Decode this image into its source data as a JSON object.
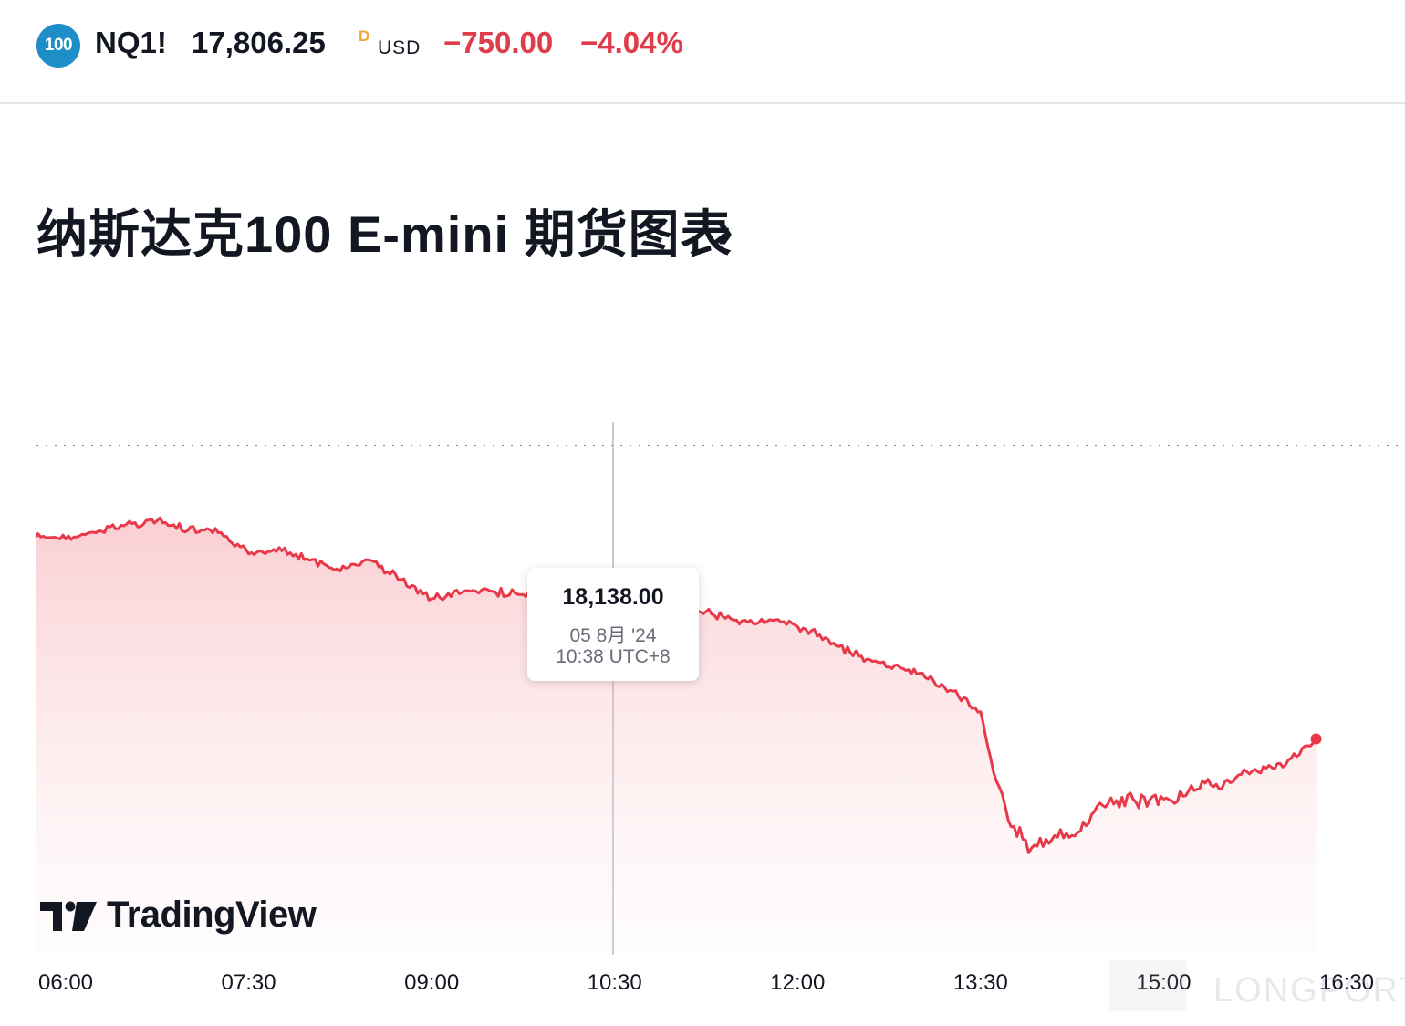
{
  "header": {
    "badge": "100",
    "symbol": "NQ1!",
    "price": "17,806.25",
    "price_flag": "D",
    "currency": "USD",
    "change": "−750.00",
    "change_pct": "−4.04%",
    "colors": {
      "negative": "#e03d4b",
      "badge": "#1d8ec7",
      "flag": "#f2a53a"
    }
  },
  "title": "纳斯达克100 E-mini 期货图表",
  "title_chevron": "›",
  "tooltip": {
    "value": "18,138.00",
    "date": "05 8月 '24",
    "time": "10:38 UTC+8"
  },
  "branding": {
    "name": "TradingView"
  },
  "watermark": {
    "text": "LONGPORT"
  },
  "chart_data": {
    "type": "area",
    "line_color": "#e8394a",
    "grid": false,
    "x_ticks": [
      "06:00",
      "07:30",
      "09:00",
      "10:30",
      "12:00",
      "13:30",
      "15:00",
      "16:30"
    ],
    "reference_line": "dotted horizontal at previous close",
    "crosshair_time": "10:38",
    "ylim": [
      17300,
      18550
    ],
    "series": [
      {
        "x": [
          "05:45",
          "06:00",
          "06:15",
          "06:30",
          "06:45",
          "07:00",
          "07:15",
          "07:30",
          "07:45",
          "08:00",
          "08:15",
          "08:30",
          "08:45",
          "09:00",
          "09:15",
          "09:30",
          "09:45",
          "10:00",
          "10:15",
          "10:30",
          "10:45",
          "11:00",
          "11:15",
          "11:30",
          "11:45",
          "12:00",
          "12:15",
          "12:30",
          "12:45",
          "13:00",
          "13:15",
          "13:30",
          "13:35",
          "13:45",
          "13:55",
          "14:05",
          "14:15",
          "14:30",
          "14:45",
          "15:00",
          "15:15",
          "15:30",
          "15:45",
          "16:00",
          "16:15"
        ],
        "values": [
          18280,
          18275,
          18290,
          18310,
          18318,
          18295,
          18290,
          18240,
          18255,
          18225,
          18200,
          18225,
          18180,
          18135,
          18150,
          18152,
          18145,
          18140,
          18138,
          18137,
          18135,
          18125,
          18105,
          18085,
          18082,
          18070,
          18040,
          18000,
          17975,
          17960,
          17920,
          17870,
          17760,
          17600,
          17550,
          17570,
          17580,
          17650,
          17665,
          17665,
          17685,
          17705,
          17735,
          17745,
          17806.25
        ]
      }
    ]
  }
}
